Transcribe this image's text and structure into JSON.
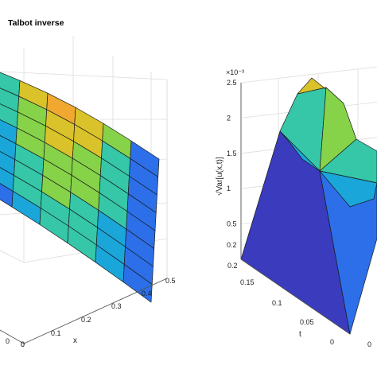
{
  "chart_data": [
    {
      "type": "surface",
      "title": "Talbot inverse",
      "xlabel": "x",
      "x_ticks": [
        "0",
        "0.1",
        "0.2",
        "0.3",
        "0.4",
        "0.5"
      ],
      "t_ticks_left": [
        "0",
        "0"
      ],
      "colormap": [
        "#3a3bbd",
        "#2c6fe8",
        "#1aa6d9",
        "#35c7a8",
        "#86d249",
        "#d9c22a",
        "#f0a830"
      ]
    },
    {
      "type": "surface",
      "ylabel": "√Var[u(x,t)]",
      "xlabel": "t",
      "exponent_label": "×10⁻³",
      "z_ticks": [
        "0.2",
        "0.5",
        "1",
        "1.5",
        "2",
        "2.5"
      ],
      "t_ticks": [
        "0",
        "0.05",
        "0.1",
        "0.15",
        "0.2"
      ],
      "x_ticks": [
        "0"
      ],
      "zlim": [
        0,
        2.5
      ],
      "colormap": [
        "#3a3bbd",
        "#2c6fe8",
        "#1aa6d9",
        "#35c7a8",
        "#86d249",
        "#d9c22a",
        "#f0a830"
      ]
    }
  ]
}
